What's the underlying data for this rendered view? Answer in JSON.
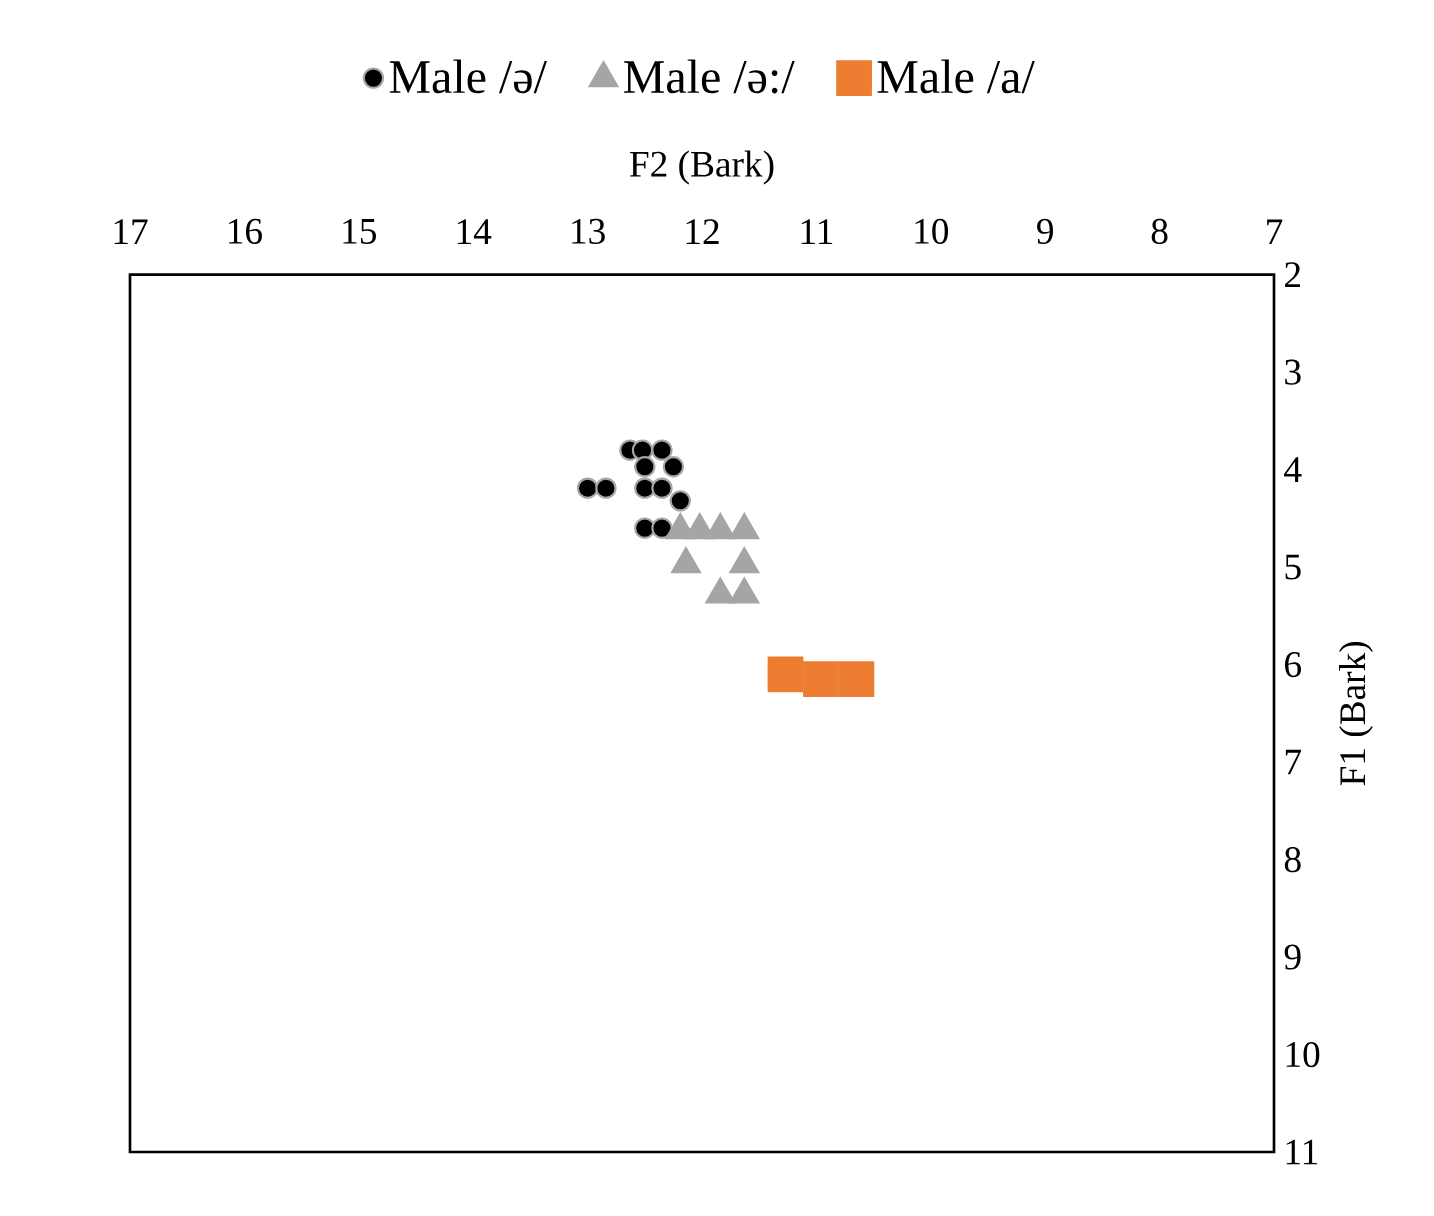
{
  "chart_data": {
    "type": "scatter",
    "xlabel": "F2 (Bark)",
    "ylabel": "F1 (Bark)",
    "xlim": [
      17,
      7
    ],
    "ylim": [
      11,
      2
    ],
    "xticks": [
      17,
      16,
      15,
      14,
      13,
      12,
      11,
      10,
      9,
      8,
      7
    ],
    "yticks": [
      2,
      3,
      4,
      5,
      6,
      7,
      8,
      9,
      10,
      11
    ],
    "legend": "top",
    "grid": false,
    "series": [
      {
        "name": "Male /ə/",
        "color": "#000000",
        "marker": "circle",
        "x": [
          12.63,
          12.52,
          12.35,
          12.5,
          12.25,
          13.0,
          12.84,
          12.5,
          12.35,
          12.19,
          12.5,
          12.35
        ],
        "values": [
          3.8,
          3.8,
          3.8,
          3.97,
          3.97,
          4.19,
          4.19,
          4.19,
          4.19,
          4.32,
          4.6,
          4.6
        ]
      },
      {
        "name": "Male /ə:/",
        "color": "#a5a5a5",
        "marker": "triangle",
        "x": [
          12.19,
          12.02,
          11.84,
          11.63,
          12.14,
          11.63,
          11.84,
          11.63
        ],
        "values": [
          4.62,
          4.62,
          4.62,
          4.62,
          4.97,
          4.97,
          5.28,
          5.28
        ]
      },
      {
        "name": "Male /a/",
        "color": "#ed7d31",
        "marker": "square",
        "x": [
          11.27,
          10.96,
          10.65
        ],
        "values": [
          6.1,
          6.15,
          6.15
        ]
      }
    ]
  }
}
